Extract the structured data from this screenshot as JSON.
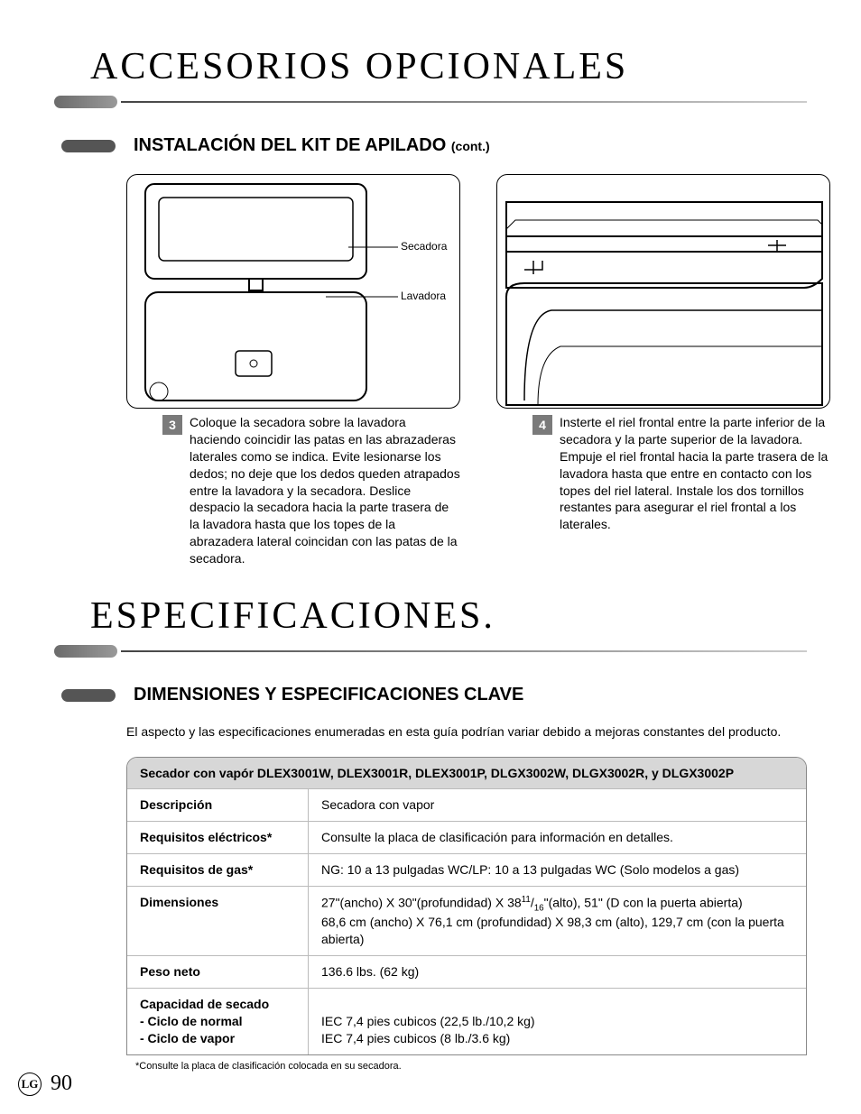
{
  "section1": {
    "title": "ACCESORIOS OPCIONALES",
    "subtitle": "INSTALACIÓN DEL KIT DE APILADO",
    "subtitle_suffix": "(cont.)"
  },
  "figure1": {
    "label_top": "Secadora",
    "label_bottom": "Lavadora",
    "step_num": "3",
    "step_text": "Coloque la secadora sobre la lavadora haciendo coincidir las patas en las abrazaderas laterales como se indica. Evite lesionarse los dedos; no deje que los dedos queden atrapados entre la lavadora y la secadora. Deslice despacio la secadora hacia la parte trasera de la lavadora hasta que los topes de la abrazadera lateral coincidan con las patas de la secadora."
  },
  "figure2": {
    "step_num": "4",
    "step_text": "Insterte el riel frontal entre la parte inferior de la secadora y la parte superior de la lavadora. Empuje el riel frontal hacia la parte trasera de la lavadora hasta que entre en contacto con los topes del riel lateral. Instale los dos tornillos restantes para asegurar el riel frontal a los laterales."
  },
  "section2": {
    "title": "ESPECIFICACIONES",
    "subtitle": "DIMENSIONES Y ESPECIFICACIONES CLAVE",
    "intro": "El aspecto y las especificaciones enumeradas en esta guía podrían variar debido a mejoras constantes del producto."
  },
  "specs": {
    "header": "Secador con vapór DLEX3001W, DLEX3001R, DLEX3001P, DLGX3002W, DLGX3002R, y DLGX3002P",
    "rows": [
      {
        "label": "Descripción",
        "value": "Secadora con vapor"
      },
      {
        "label": "Requisitos eléctricos*",
        "value": "Consulte la placa de clasificación para información en detalles."
      },
      {
        "label": "Requisitos de gas*",
        "value": "NG: 10 a 13 pulgadas WC/LP: 10 a 13 pulgadas WC (Solo modelos a gas)"
      },
      {
        "label": "Dimensiones",
        "value_html": "27\"(ancho) X 30\"(profundidad) X 38<sup>11</sup>/<sub>16</sub>\"(alto), 51\" (D con la puerta abierta)<br>68,6 cm (ancho) X 76,1 cm (profundidad) X 98,3 cm (alto), 129,7 cm (con la puerta abierta)"
      },
      {
        "label": "Peso neto",
        "value": "136.6 lbs. (62 kg)"
      },
      {
        "label_html": "Capacidad de secado<br>- Ciclo de normal<br>- Ciclo de vapor",
        "value_html": "<br>IEC 7,4 pies cubicos (22,5 lb./10,2 kg)<br>IEC 7,4 pies cubicos (8 lb./3.6 kg)"
      }
    ]
  },
  "footnote": "*Consulte la placa de clasificación colocada en su secadora.",
  "page": "90",
  "logo": "LG",
  "colors": {
    "text": "#000000",
    "background": "#ffffff",
    "pill_gradient_start": "#6b6b6b",
    "pill_gradient_end": "#999999",
    "badge_bg": "#7a7a7a",
    "table_header_bg": "#d7d7d7",
    "border": "#888888"
  }
}
